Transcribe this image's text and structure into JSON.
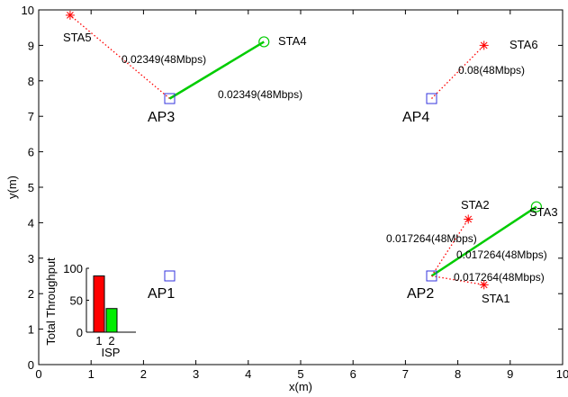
{
  "chart_data": [
    {
      "type": "scatter",
      "title": "",
      "xlabel": "x(m)",
      "ylabel": "y(m)",
      "xlim": [
        0,
        10
      ],
      "ylim": [
        0,
        10
      ],
      "xticks": [
        0,
        1,
        2,
        3,
        4,
        5,
        6,
        7,
        8,
        9,
        10
      ],
      "yticks": [
        0,
        1,
        2,
        3,
        4,
        5,
        6,
        7,
        8,
        9,
        10
      ],
      "grid": false,
      "access_points": [
        {
          "label": "AP1",
          "x": 2.5,
          "y": 2.5
        },
        {
          "label": "AP2",
          "x": 7.5,
          "y": 2.5
        },
        {
          "label": "AP3",
          "x": 2.5,
          "y": 7.5
        },
        {
          "label": "AP4",
          "x": 7.5,
          "y": 7.5
        }
      ],
      "stations": [
        {
          "label": "STA1",
          "x": 8.5,
          "y": 2.25,
          "marker": "star",
          "color": "#ff0000"
        },
        {
          "label": "STA2",
          "x": 8.2,
          "y": 4.1,
          "marker": "star",
          "color": "#ff0000"
        },
        {
          "label": "STA3",
          "x": 9.5,
          "y": 4.45,
          "marker": "circle",
          "color": "#00cc00"
        },
        {
          "label": "STA4",
          "x": 4.3,
          "y": 9.1,
          "marker": "circle",
          "color": "#00cc00"
        },
        {
          "label": "STA5",
          "x": 0.6,
          "y": 9.85,
          "marker": "star",
          "color": "#ff0000"
        },
        {
          "label": "STA6",
          "x": 8.5,
          "y": 9.0,
          "marker": "star",
          "color": "#ff0000"
        }
      ],
      "links": [
        {
          "from": "AP3",
          "to": "STA5",
          "style": "dotted",
          "color": "#ff0000",
          "label": "0.02349(48Mbps)"
        },
        {
          "from": "AP3",
          "to": "STA4",
          "style": "solid",
          "color": "#00cc00",
          "label": "0.02349(48Mbps)"
        },
        {
          "from": "AP4",
          "to": "STA6",
          "style": "dotted",
          "color": "#ff0000",
          "label": "0.08(48Mbps)"
        },
        {
          "from": "AP2",
          "to": "STA2",
          "style": "dotted",
          "color": "#ff0000",
          "label": "0.017264(48Mbps)"
        },
        {
          "from": "AP2",
          "to": "STA3",
          "style": "solid",
          "color": "#00cc00",
          "label": "0.017264(48Mbps)"
        },
        {
          "from": "AP2",
          "to": "STA1",
          "style": "dotted",
          "color": "#ff0000",
          "label": "0.017264(48Mbps)"
        }
      ],
      "colors": {
        "ap": "#3333dd",
        "red": "#ff0000",
        "green": "#00cc00"
      }
    },
    {
      "type": "bar",
      "title": "",
      "xlabel": "ISP",
      "ylabel": "Total Throughput",
      "categories": [
        "1",
        "2"
      ],
      "values": [
        88,
        37
      ],
      "ylim": [
        0,
        100
      ],
      "yticks": [
        0,
        50,
        100
      ],
      "colors": [
        "#ff0000",
        "#00ee00"
      ]
    }
  ]
}
